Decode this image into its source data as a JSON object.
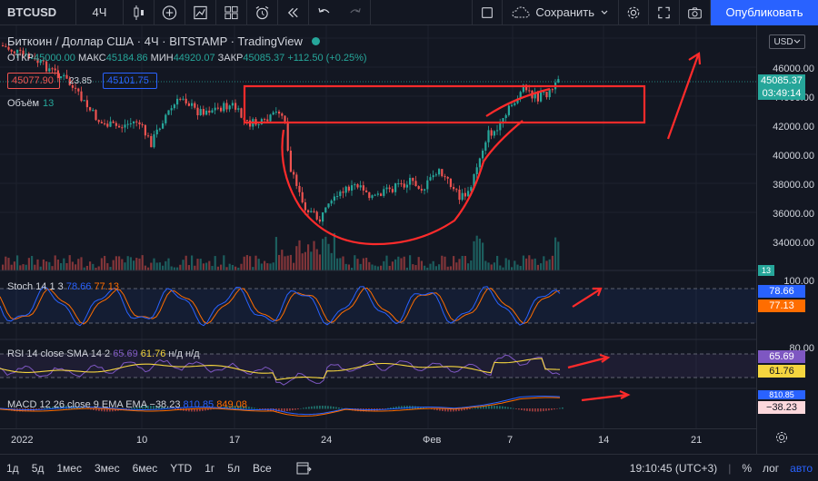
{
  "toolbar": {
    "symbol": "BTCUSD",
    "interval": "4Ч",
    "save_label": "Сохранить",
    "publish_label": "Опубликовать"
  },
  "legend": {
    "title": "Биткоин / Доллар США · 4Ч · BITSTAMP · TradingView",
    "open_label": "ОТКР",
    "open_value": "45000.00",
    "high_label": "МАКС",
    "high_value": "45184.86",
    "low_label": "МИН",
    "low_value": "44920.07",
    "close_label": "ЗАКР",
    "close_value": "45085.37",
    "change_value": "+112.50 (+0.25%)",
    "bid": "45077.90",
    "spread": "23.85",
    "ask": "45101.75",
    "volume_label": "Объём",
    "volume_value": "13"
  },
  "indicators": {
    "stoch_name": "Stoch 14 1 3",
    "stoch_k": "78.66",
    "stoch_d": "77.13",
    "rsi_name": "RSI 14 close SMA 14 2",
    "rsi_value": "65.69",
    "rsi_sma": "61.76",
    "rsi_na": "н/д н/д",
    "macd_name": "MACD 12 26 close 9 EMA EMA",
    "macd_hist": "−38.23",
    "macd_line": "810.85",
    "macd_signal": "849.08"
  },
  "price_axis": {
    "currency": "USD",
    "labels": [
      "46000.00",
      "44000.00",
      "42000.00",
      "40000.00",
      "38000.00",
      "36000.00",
      "34000.00"
    ],
    "current_price": "45085.37",
    "countdown": "03:49:14",
    "volume_tag": "13",
    "stoch_axis": "100.00",
    "stoch_k_tag": "78.66",
    "stoch_d_tag": "77.13",
    "rsi_axis": "80.00",
    "rsi_tag": "65.69",
    "rsi_sma_tag": "61.76",
    "macd_tag1": "810.85",
    "macd_tag2": "−38.23"
  },
  "time_axis": {
    "labels": [
      "2022",
      "10",
      "17",
      "24",
      "Фев",
      "7",
      "14",
      "21"
    ]
  },
  "bottom_bar": {
    "ranges": [
      "1д",
      "5д",
      "1мес",
      "3мес",
      "6мес",
      "YTD",
      "1г",
      "5л",
      "Все"
    ],
    "clock": "19:10:45 (UTC+3)",
    "percent": "%",
    "log": "лог",
    "auto": "авто"
  },
  "colors": {
    "up": "#26a69a",
    "down": "#ef5350",
    "stoch_k": "#2962ff",
    "stoch_d": "#ff6d00",
    "rsi": "#7e57c2",
    "rsi_sma": "#f5d53f",
    "macd": "#2962ff",
    "signal": "#ff6d00",
    "annotation": "#ff2b2b",
    "publish": "#2962ff"
  }
}
